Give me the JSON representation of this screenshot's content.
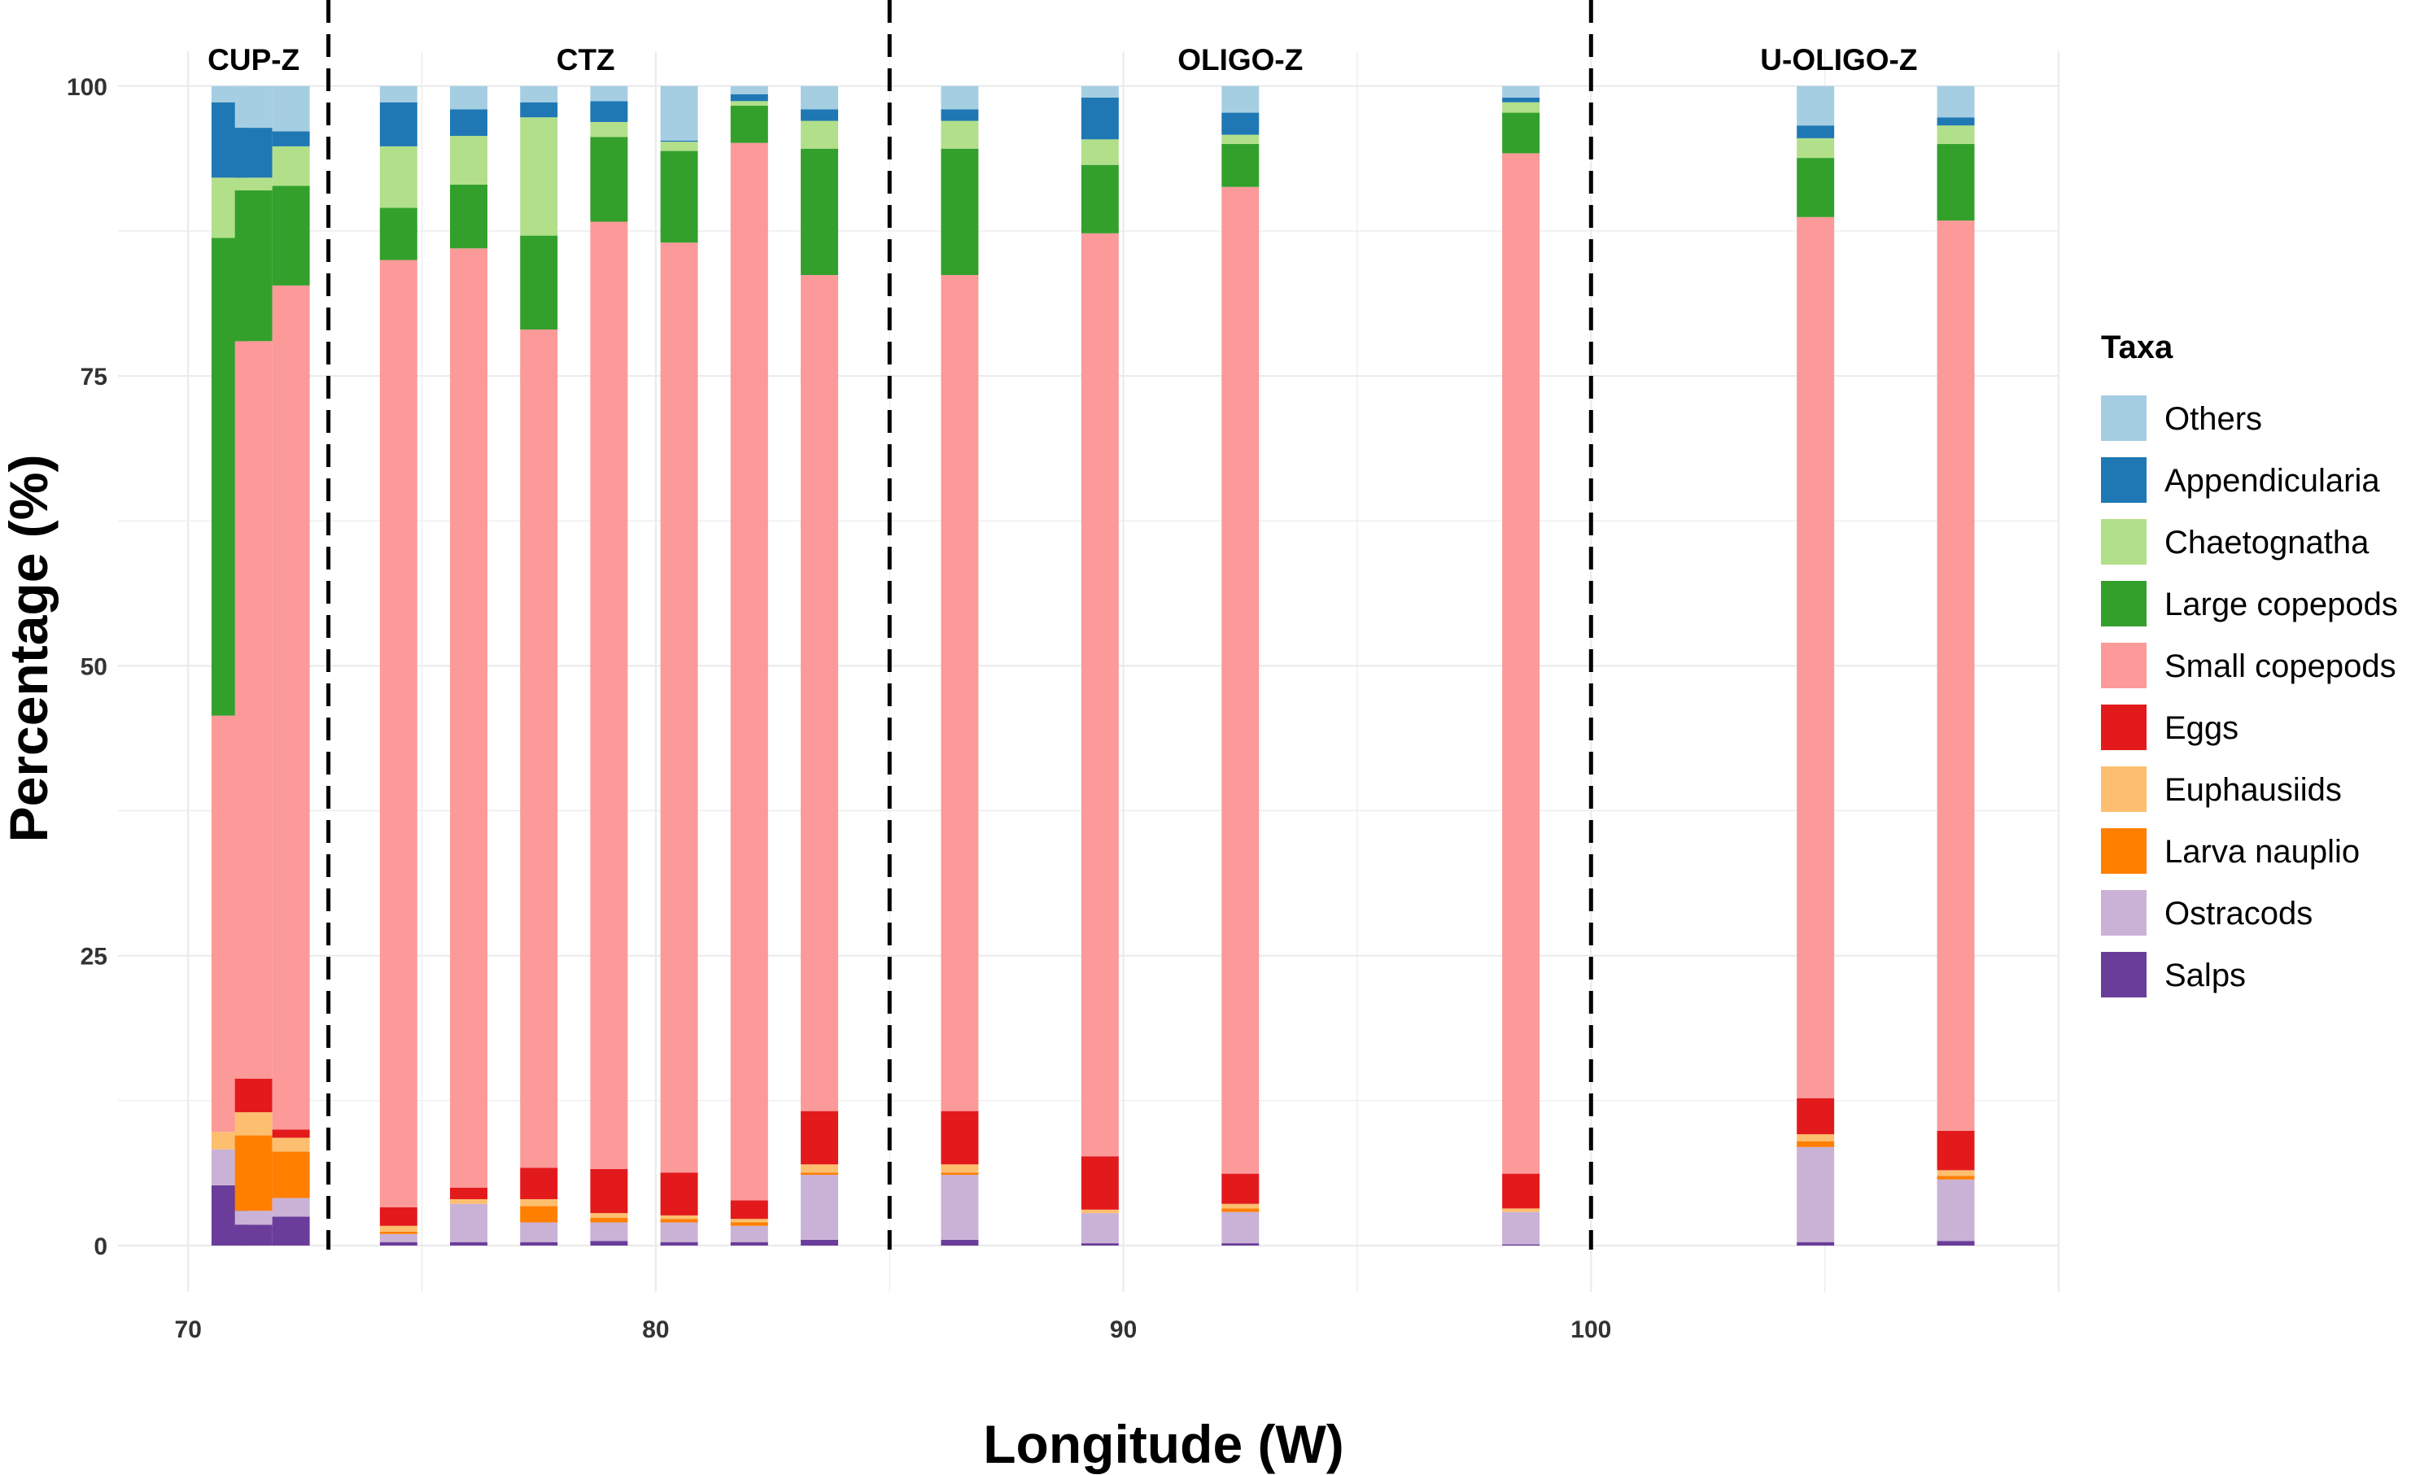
{
  "chart_data": {
    "type": "bar",
    "stacked": true,
    "title": "",
    "xlabel": "Longitude (W)",
    "ylabel": "Percentage (%)",
    "xlim": [
      68.5,
      110
    ],
    "ylim": [
      -4,
      103
    ],
    "x_ticks": [
      70,
      80,
      90,
      100
    ],
    "y_ticks": [
      0,
      25,
      50,
      75,
      100
    ],
    "grid": true,
    "legend_position": "right",
    "legend_title": "Taxa",
    "zone_boundaries": [
      73,
      85,
      100
    ],
    "zones": [
      {
        "name": "CUP-Z",
        "x": 71.4
      },
      {
        "name": "CTZ",
        "x": 78.5
      },
      {
        "name": "OLIGO-Z",
        "x": 92.5
      },
      {
        "name": "U-OLIGO-Z",
        "x": 105.3
      }
    ],
    "series_order": [
      "Salps",
      "Ostracods",
      "Larva nauplio",
      "Euphausiids",
      "Eggs",
      "Small copepods",
      "Large copepods",
      "Chaetognatha",
      "Appendicularia",
      "Others"
    ],
    "colors": {
      "Others": "#a6cee3",
      "Appendicularia": "#1f78b4",
      "Chaetognatha": "#b2df8a",
      "Large copepods": "#33a02c",
      "Small copepods": "#fb9a99",
      "Eggs": "#e31a1c",
      "Euphausiids": "#fdbf6f",
      "Larva nauplio": "#ff7f00",
      "Ostracods": "#cab2d6",
      "Salps": "#6a3d9a"
    },
    "legend_order": [
      "Others",
      "Appendicularia",
      "Chaetognatha",
      "Large copepods",
      "Small copepods",
      "Eggs",
      "Euphausiids",
      "Larva nauplio",
      "Ostracods",
      "Salps"
    ],
    "bar_width": 0.8,
    "stations": [
      {
        "x": 70.9,
        "values": {
          "Salps": 5.2,
          "Ostracods": 3.1,
          "Larva nauplio": 0.0,
          "Euphausiids": 1.5,
          "Eggs": 0.0,
          "Small copepods": 35.9,
          "Large copepods": 41.2,
          "Chaetognatha": 5.2,
          "Appendicularia": 6.5,
          "Others": 1.4
        }
      },
      {
        "x": 71.4,
        "values": {
          "Salps": 1.8,
          "Ostracods": 1.2,
          "Larva nauplio": 6.5,
          "Euphausiids": 2.0,
          "Eggs": 2.9,
          "Small copepods": 63.6,
          "Large copepods": 13.0,
          "Chaetognatha": 1.1,
          "Appendicularia": 4.3,
          "Others": 3.6
        }
      },
      {
        "x": 72.2,
        "values": {
          "Salps": 2.5,
          "Ostracods": 1.6,
          "Larva nauplio": 4.0,
          "Euphausiids": 1.2,
          "Eggs": 0.7,
          "Small copepods": 72.8,
          "Large copepods": 8.6,
          "Chaetognatha": 3.4,
          "Appendicularia": 1.3,
          "Others": 3.9
        }
      },
      {
        "x": 74.5,
        "values": {
          "Salps": 0.3,
          "Ostracods": 0.7,
          "Larva nauplio": 0.2,
          "Euphausiids": 0.5,
          "Eggs": 1.6,
          "Small copepods": 81.7,
          "Large copepods": 4.5,
          "Chaetognatha": 5.3,
          "Appendicularia": 3.8,
          "Others": 1.4
        }
      },
      {
        "x": 76.0,
        "values": {
          "Salps": 0.3,
          "Ostracods": 3.3,
          "Larva nauplio": 0.0,
          "Euphausiids": 0.4,
          "Eggs": 1.0,
          "Small copepods": 81.0,
          "Large copepods": 5.5,
          "Chaetognatha": 4.2,
          "Appendicularia": 2.3,
          "Others": 2.0
        }
      },
      {
        "x": 77.5,
        "values": {
          "Salps": 0.3,
          "Ostracods": 1.7,
          "Larva nauplio": 1.4,
          "Euphausiids": 0.6,
          "Eggs": 2.7,
          "Small copepods": 72.3,
          "Large copepods": 8.1,
          "Chaetognatha": 10.2,
          "Appendicularia": 1.3,
          "Others": 1.4
        }
      },
      {
        "x": 79.0,
        "values": {
          "Salps": 0.4,
          "Ostracods": 1.6,
          "Larva nauplio": 0.4,
          "Euphausiids": 0.4,
          "Eggs": 3.8,
          "Small copepods": 81.7,
          "Large copepods": 7.3,
          "Chaetognatha": 1.3,
          "Appendicularia": 1.8,
          "Others": 1.3
        }
      },
      {
        "x": 80.5,
        "values": {
          "Salps": 0.3,
          "Ostracods": 1.7,
          "Larva nauplio": 0.3,
          "Euphausiids": 0.3,
          "Eggs": 3.7,
          "Small copepods": 80.2,
          "Large copepods": 7.9,
          "Chaetognatha": 0.8,
          "Appendicularia": 0.1,
          "Others": 4.7
        }
      },
      {
        "x": 82.0,
        "values": {
          "Salps": 0.3,
          "Ostracods": 1.4,
          "Larva nauplio": 0.3,
          "Euphausiids": 0.3,
          "Eggs": 1.6,
          "Small copepods": 91.2,
          "Large copepods": 3.2,
          "Chaetognatha": 0.4,
          "Appendicularia": 0.6,
          "Others": 0.7
        }
      },
      {
        "x": 83.5,
        "values": {
          "Salps": 0.5,
          "Ostracods": 5.6,
          "Larva nauplio": 0.2,
          "Euphausiids": 0.7,
          "Eggs": 4.6,
          "Small copepods": 72.1,
          "Large copepods": 10.9,
          "Chaetognatha": 2.4,
          "Appendicularia": 1.0,
          "Others": 2.0
        }
      },
      {
        "x": 86.5,
        "values": {
          "Salps": 0.5,
          "Ostracods": 5.6,
          "Larva nauplio": 0.2,
          "Euphausiids": 0.7,
          "Eggs": 4.6,
          "Small copepods": 72.1,
          "Large copepods": 10.9,
          "Chaetognatha": 2.4,
          "Appendicularia": 1.0,
          "Others": 2.0
        }
      },
      {
        "x": 89.5,
        "values": {
          "Salps": 0.2,
          "Ostracods": 2.6,
          "Larva nauplio": 0.0,
          "Euphausiids": 0.3,
          "Eggs": 4.6,
          "Small copepods": 79.6,
          "Large copepods": 5.9,
          "Chaetognatha": 2.2,
          "Appendicularia": 3.6,
          "Others": 1.0
        }
      },
      {
        "x": 92.5,
        "values": {
          "Salps": 0.2,
          "Ostracods": 2.7,
          "Larva nauplio": 0.3,
          "Euphausiids": 0.4,
          "Eggs": 2.6,
          "Small copepods": 85.1,
          "Large copepods": 3.7,
          "Chaetognatha": 0.8,
          "Appendicularia": 1.9,
          "Others": 2.3
        }
      },
      {
        "x": 98.5,
        "values": {
          "Salps": 0.1,
          "Ostracods": 2.8,
          "Larva nauplio": 0.0,
          "Euphausiids": 0.3,
          "Eggs": 3.0,
          "Small copepods": 88.0,
          "Large copepods": 3.5,
          "Chaetognatha": 0.9,
          "Appendicularia": 0.4,
          "Others": 1.0
        }
      },
      {
        "x": 104.8,
        "values": {
          "Salps": 0.3,
          "Ostracods": 8.2,
          "Larva nauplio": 0.5,
          "Euphausiids": 0.6,
          "Eggs": 3.1,
          "Small copepods": 76.0,
          "Large copepods": 5.1,
          "Chaetognatha": 1.7,
          "Appendicularia": 1.1,
          "Others": 3.4
        }
      },
      {
        "x": 107.8,
        "values": {
          "Salps": 0.4,
          "Ostracods": 5.3,
          "Larva nauplio": 0.3,
          "Euphausiids": 0.5,
          "Eggs": 3.4,
          "Small copepods": 78.5,
          "Large copepods": 6.6,
          "Chaetognatha": 1.6,
          "Appendicularia": 0.7,
          "Others": 2.7
        }
      }
    ]
  }
}
